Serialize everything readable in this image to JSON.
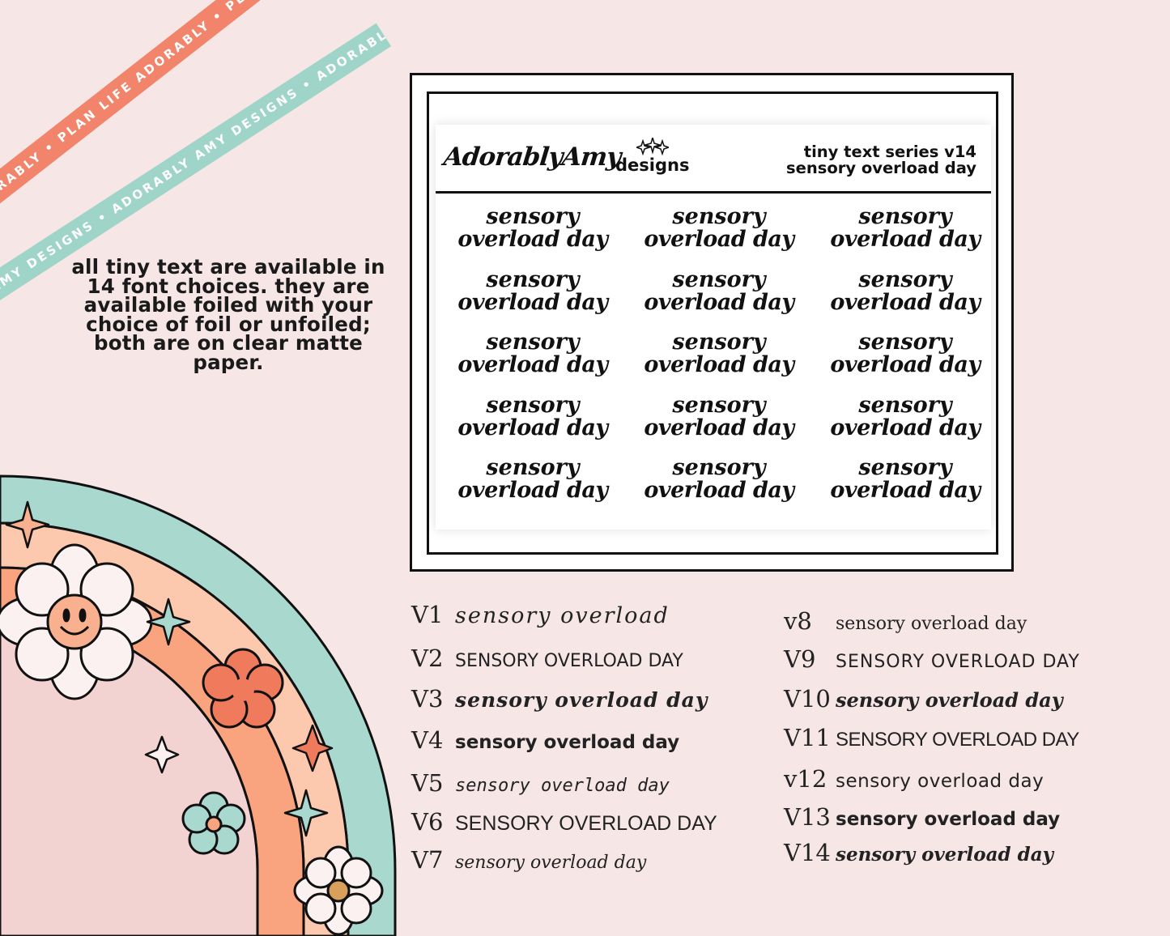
{
  "ribbons": {
    "coral_text": "PLAN LIFE ADORABLY • PLAN LIFE ADORABLY • PLAN LIFE ADORABLY •",
    "mint_text": "ADORABLY AMY DESIGNS • ADORABLY AMY DESIGNS • ADORABLY AMY DESIGNS •"
  },
  "description": "all tiny text are available in 14 font choices. they are available foiled with your choice of foil or unfoiled; both are on clear matte paper.",
  "card": {
    "logo_script": "AdorablyAmy",
    "logo_designs": "designs",
    "series_line1": "tiny text series v14",
    "series_line2": "sensory overload day",
    "sticker_line1": "sensory",
    "sticker_line2": "overload day"
  },
  "fonts_left": [
    {
      "version": "V1",
      "sample": "sensory overload"
    },
    {
      "version": "V2",
      "sample": "SENSORY OVERLOAD DAY"
    },
    {
      "version": "V3",
      "sample": "sensory overload day"
    },
    {
      "version": "V4",
      "sample": "sensory overload day"
    },
    {
      "version": "V5",
      "sample": "sensory overload day"
    },
    {
      "version": "V6",
      "sample": "SENSORY OVERLOAD DAY"
    },
    {
      "version": "V7",
      "sample": "sensory overload day"
    }
  ],
  "fonts_right": [
    {
      "version": "v8",
      "sample": "sensory overload day"
    },
    {
      "version": "V9",
      "sample": "SENSORY OVERLOAD DAY"
    },
    {
      "version": "V10",
      "sample": "sensory overload day"
    },
    {
      "version": "V11",
      "sample": "SENSORY OVERLOAD DAY"
    },
    {
      "version": "v12",
      "sample": "sensory overload day"
    },
    {
      "version": "V13",
      "sample": "sensory overload day"
    },
    {
      "version": "V14",
      "sample": "sensory overload day"
    }
  ],
  "colors": {
    "background": "#f6e6e6",
    "coral": "#f1846a",
    "mint": "#9fd4c8",
    "peach": "#f9a47e",
    "light_peach": "#fcc9ae",
    "pink": "#f0cfd0"
  },
  "icons": [
    "daisy-icon",
    "smiley-daisy-icon",
    "sparkle-icon",
    "flower-icon",
    "star-icon"
  ]
}
